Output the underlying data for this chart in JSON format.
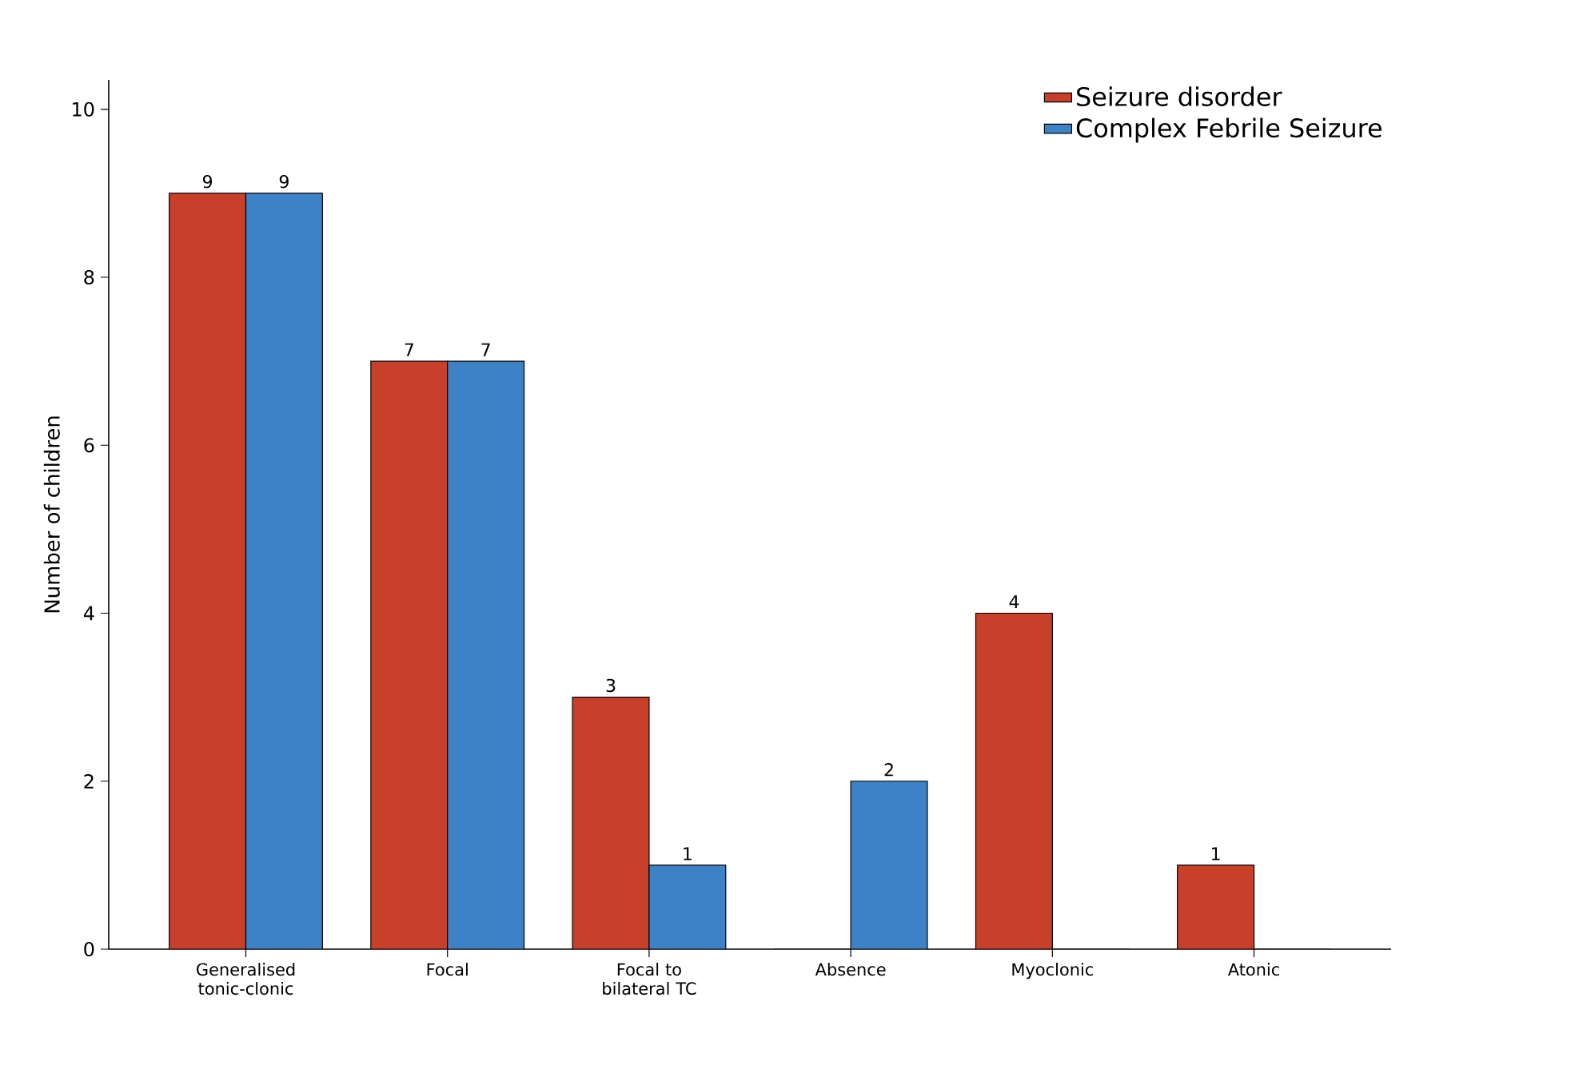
{
  "chart_data": {
    "type": "bar",
    "ylabel": "Number of children",
    "categories": [
      "Generalised tonic-clonic",
      "Focal",
      "Focal to bilateral TC",
      "Absence",
      "Myoclonic",
      "Atonic"
    ],
    "series": [
      {
        "name": "Seizure disorder",
        "color": "#c9402a",
        "values": [
          9,
          7,
          3,
          0,
          4,
          1
        ],
        "value_labels": [
          "9",
          "7",
          "3",
          null,
          "4",
          "1"
        ]
      },
      {
        "name": "Complex Febrile Seizure",
        "color": "#3d82c6",
        "values": [
          9,
          7,
          1,
          2,
          0,
          0
        ],
        "value_labels": [
          "9",
          "7",
          "1",
          "2",
          null,
          null
        ]
      }
    ],
    "ylim": [
      0,
      10.35
    ],
    "yticks": [
      0,
      2,
      4,
      6,
      8,
      10
    ],
    "legend": "top right",
    "grid": false
  }
}
